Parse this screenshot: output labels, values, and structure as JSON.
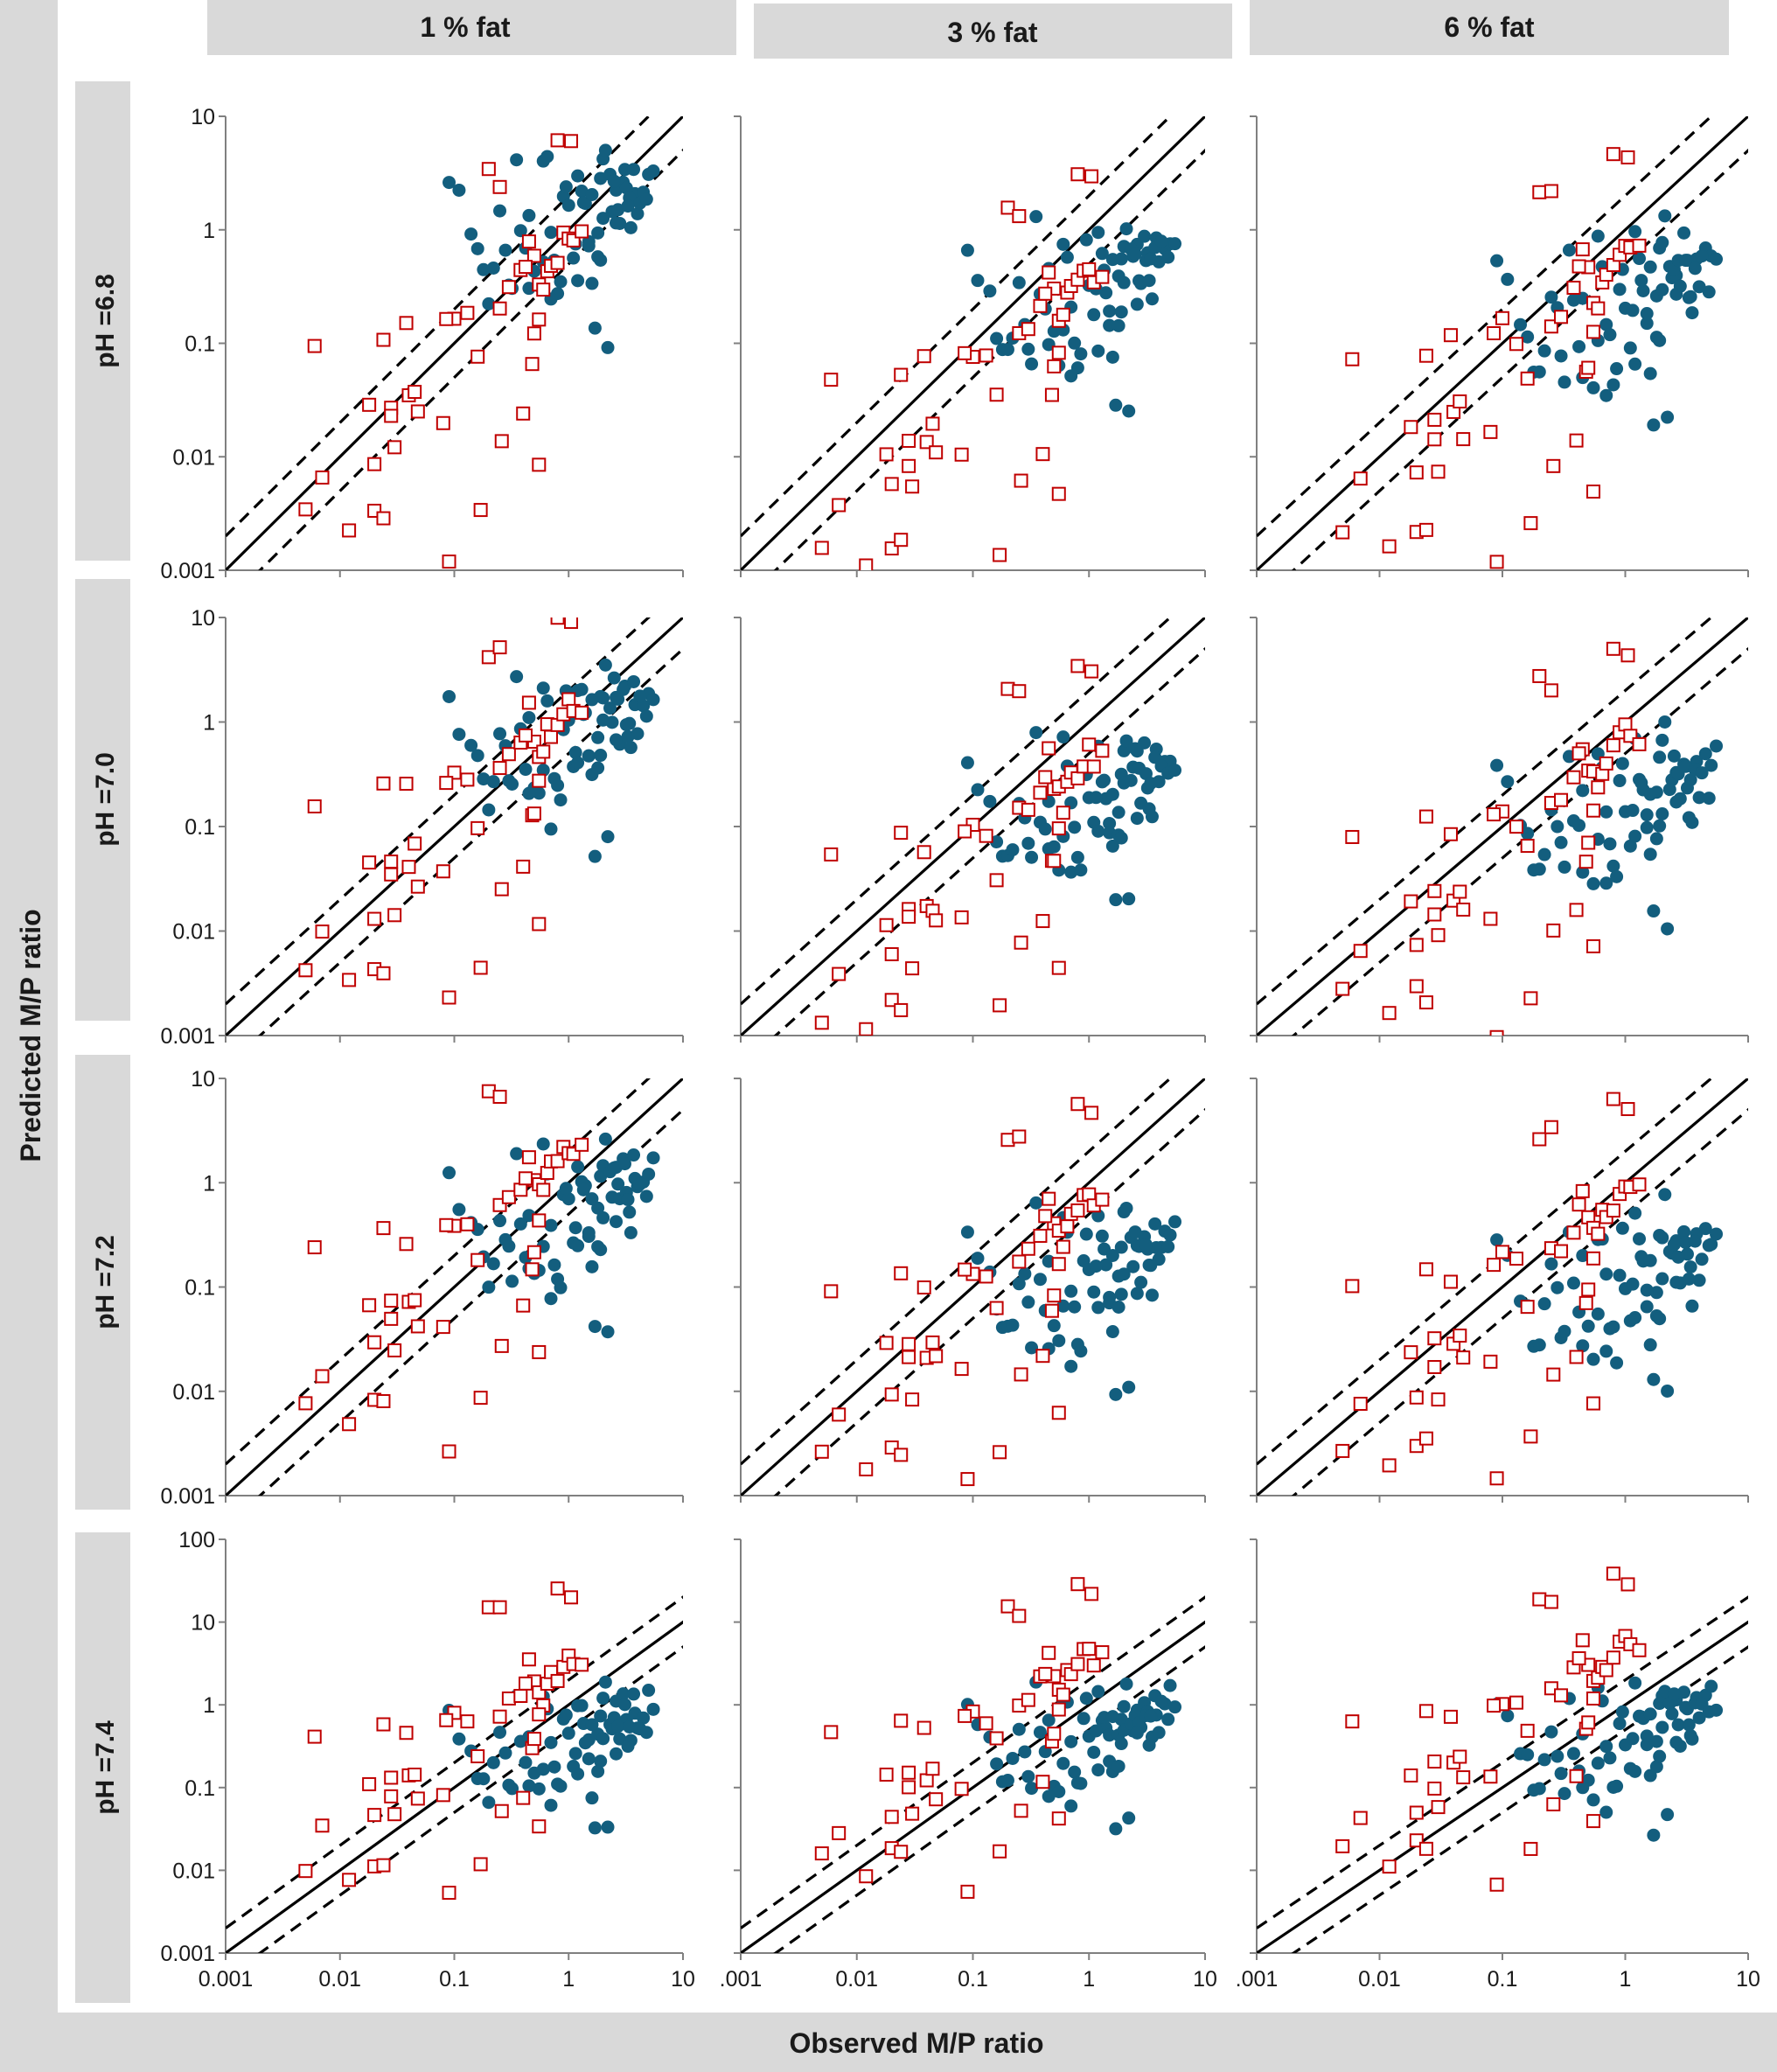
{
  "figure": {
    "y_axis_title": "Predicted M/P ratio",
    "x_axis_title": "Observed M/P ratio",
    "column_headers": [
      "1 % fat",
      "3 % fat",
      "6 % fat"
    ],
    "row_headers": [
      "pH =6.8",
      "pH =7.0",
      "pH =7.2",
      "pH =7.4"
    ],
    "colors": {
      "band": "#d9d9d9",
      "observed_point": "#135e7e",
      "square_marker": "#c00000",
      "line": "#000000"
    }
  },
  "chart_data": {
    "type": "scatter",
    "title": "",
    "xlabel": "Observed M/P ratio",
    "ylabel": "Predicted M/P ratio",
    "scale": "log",
    "xlim": [
      0.001,
      10
    ],
    "x_ticks": [
      0.001,
      0.01,
      0.1,
      1,
      10
    ],
    "x_tick_labels": [
      "0.001",
      "0.01",
      "0.1",
      "1",
      "10"
    ],
    "x_tick_labels_cropped": [
      ".001",
      "0.01",
      "0.1",
      "1",
      "10"
    ],
    "ylim_default": [
      0.001,
      10
    ],
    "y_tick_labels_default": [
      "0.001",
      "0.01",
      "0.1",
      "1",
      "10"
    ],
    "ylim_ph74": [
      0.001,
      100
    ],
    "y_tick_labels_ph74": [
      "0.001",
      "0.01",
      "0.1",
      "1",
      "10",
      "100"
    ],
    "reference_lines": [
      {
        "name": "line of identity",
        "style": "solid",
        "factor": 1
      },
      {
        "name": "upper bound",
        "style": "dashed",
        "factor": 2
      },
      {
        "name": "lower bound",
        "style": "dashed",
        "factor": 0.5
      }
    ],
    "series": [
      {
        "name": "circle markers",
        "marker": "filled circle",
        "color": "#135e7e"
      },
      {
        "name": "square markers",
        "marker": "open square",
        "color": "#c00000"
      }
    ],
    "panels": [
      {
        "row": "pH =6.8",
        "col": "1 % fat",
        "ylim": [
          0.001,
          10
        ]
      },
      {
        "row": "pH =6.8",
        "col": "3 % fat",
        "ylim": [
          0.001,
          10
        ]
      },
      {
        "row": "pH =6.8",
        "col": "6 % fat",
        "ylim": [
          0.001,
          10
        ]
      },
      {
        "row": "pH =7.0",
        "col": "1 % fat",
        "ylim": [
          0.001,
          10
        ]
      },
      {
        "row": "pH =7.0",
        "col": "3 % fat",
        "ylim": [
          0.001,
          10
        ]
      },
      {
        "row": "pH =7.0",
        "col": "6 % fat",
        "ylim": [
          0.001,
          10
        ]
      },
      {
        "row": "pH =7.2",
        "col": "1 % fat",
        "ylim": [
          0.001,
          10
        ]
      },
      {
        "row": "pH =7.2",
        "col": "3 % fat",
        "ylim": [
          0.001,
          10
        ]
      },
      {
        "row": "pH =7.2",
        "col": "6 % fat",
        "ylim": [
          0.001,
          10
        ]
      },
      {
        "row": "pH =7.4",
        "col": "1 % fat",
        "ylim": [
          0.001,
          100
        ]
      },
      {
        "row": "pH =7.4",
        "col": "3 % fat",
        "ylim": [
          0.001,
          100
        ]
      },
      {
        "row": "pH =7.4",
        "col": "6 % fat",
        "ylim": [
          0.001,
          100
        ]
      }
    ],
    "square_points": [
      [
        0.006,
        0.11
      ],
      [
        0.005,
        0.003
      ],
      [
        0.007,
        0.007
      ],
      [
        0.012,
        0.002
      ],
      [
        0.018,
        0.026
      ],
      [
        0.02,
        0.01
      ],
      [
        0.02,
        0.0033
      ],
      [
        0.024,
        0.003
      ],
      [
        0.024,
        0.13
      ],
      [
        0.038,
        0.13
      ],
      [
        0.028,
        0.028
      ],
      [
        0.028,
        0.02
      ],
      [
        0.03,
        0.01
      ],
      [
        0.04,
        0.028
      ],
      [
        0.045,
        0.035
      ],
      [
        0.048,
        0.02
      ],
      [
        0.08,
        0.02
      ],
      [
        0.09,
        0.0013
      ],
      [
        0.1,
        0.18
      ],
      [
        0.085,
        0.16
      ],
      [
        0.13,
        0.15
      ],
      [
        0.16,
        0.07
      ],
      [
        0.17,
        0.0033
      ],
      [
        0.2,
        3.0
      ],
      [
        0.25,
        3.0
      ],
      [
        0.25,
        0.22
      ],
      [
        0.26,
        0.013
      ],
      [
        0.3,
        0.25
      ],
      [
        0.38,
        0.4
      ],
      [
        0.4,
        0.022
      ],
      [
        0.48,
        0.07
      ],
      [
        0.55,
        0.008
      ],
      [
        0.5,
        0.1
      ],
      [
        0.45,
        0.85
      ],
      [
        0.5,
        0.5
      ],
      [
        0.55,
        0.35
      ],
      [
        0.6,
        0.3
      ],
      [
        0.65,
        0.5
      ],
      [
        0.7,
        0.55
      ],
      [
        0.8,
        0.6
      ],
      [
        0.9,
        0.85
      ],
      [
        1.0,
        0.95
      ],
      [
        1.1,
        0.8
      ],
      [
        1.3,
        0.9
      ],
      [
        0.8,
        5.5
      ],
      [
        1.05,
        5.5
      ],
      [
        0.55,
        0.2
      ],
      [
        0.42,
        0.55
      ]
    ],
    "circle_points": [
      [
        0.09,
        2.4
      ],
      [
        0.11,
        1.6
      ],
      [
        0.14,
        0.9
      ],
      [
        0.16,
        0.6
      ],
      [
        0.18,
        0.35
      ],
      [
        0.2,
        0.25
      ],
      [
        0.22,
        0.5
      ],
      [
        0.25,
        1.2
      ],
      [
        0.28,
        0.8
      ],
      [
        0.3,
        0.45
      ],
      [
        0.32,
        0.3
      ],
      [
        0.35,
        4.0
      ],
      [
        0.38,
        1.0
      ],
      [
        0.42,
        0.6
      ],
      [
        0.45,
        1.5
      ],
      [
        0.5,
        0.4
      ],
      [
        0.55,
        0.25
      ],
      [
        0.6,
        4.0
      ],
      [
        0.65,
        3.2
      ],
      [
        0.7,
        1.0
      ],
      [
        0.75,
        0.5
      ],
      [
        0.8,
        0.3
      ],
      [
        0.9,
        1.8
      ],
      [
        1.0,
        1.2
      ],
      [
        1.1,
        0.6
      ],
      [
        1.2,
        4.0
      ],
      [
        1.3,
        2.5
      ],
      [
        1.4,
        1.5
      ],
      [
        1.5,
        0.9
      ],
      [
        1.6,
        0.35
      ],
      [
        1.7,
        0.1
      ],
      [
        1.8,
        1.2
      ],
      [
        1.9,
        2.5
      ],
      [
        2.0,
        3.5
      ],
      [
        2.1,
        5.5
      ],
      [
        2.2,
        0.1
      ],
      [
        2.4,
        1.8
      ],
      [
        2.6,
        2.8
      ],
      [
        2.8,
        1.2
      ],
      [
        3.0,
        3.5
      ],
      [
        3.2,
        2.0
      ],
      [
        3.5,
        0.9
      ],
      [
        3.8,
        2.6
      ],
      [
        4.0,
        1.5
      ],
      [
        4.5,
        3.0
      ],
      [
        5.0,
        3.6
      ],
      [
        1.15,
        1.0
      ],
      [
        0.95,
        2.6
      ],
      [
        1.35,
        2.2
      ],
      [
        1.6,
        1.9
      ],
      [
        2.0,
        1.3
      ],
      [
        2.3,
        2.2
      ],
      [
        2.5,
        3.0
      ],
      [
        2.7,
        2.0
      ],
      [
        3.1,
        2.8
      ],
      [
        3.4,
        1.6
      ],
      [
        3.7,
        3.2
      ],
      [
        4.2,
        2.4
      ],
      [
        4.8,
        1.8
      ],
      [
        5.5,
        3.0
      ],
      [
        1.2,
        0.45
      ],
      [
        1.5,
        0.7
      ],
      [
        1.8,
        0.5
      ],
      [
        0.7,
        0.2
      ],
      [
        0.6,
        0.7
      ],
      [
        0.45,
        0.3
      ],
      [
        0.85,
        0.25
      ],
      [
        1.9,
        0.7
      ],
      [
        2.6,
        1.0
      ],
      [
        3.3,
        1.2
      ]
    ]
  }
}
